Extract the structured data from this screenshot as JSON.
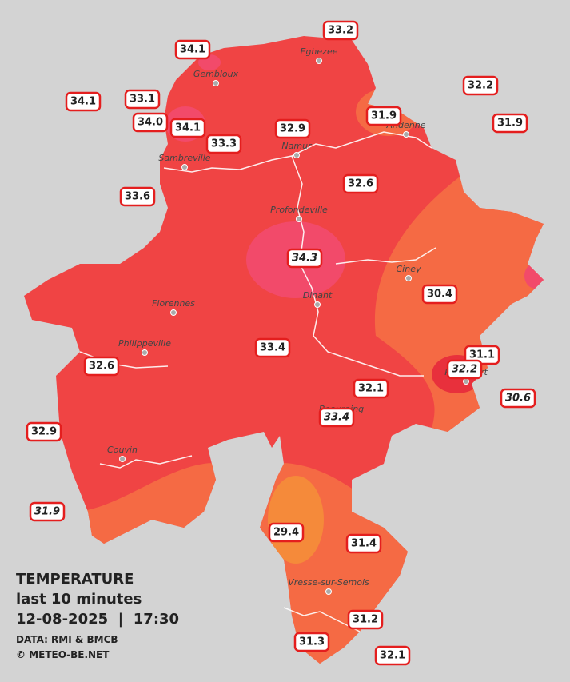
{
  "legend": {
    "title": "TEMPERATURE",
    "subtitle": "last 10 minutes",
    "datetime": "12-08-2025  |  17:30",
    "source": "DATA: RMI & BMCB",
    "credit": "© METEO-BE.NET"
  },
  "cities": [
    "Eghezee",
    "Gembloux",
    "Andenne",
    "Namur",
    "Sambreville",
    "Profondeville",
    "Ciney",
    "Dinant",
    "Florennes",
    "Philippeville",
    "Rochefort",
    "Beauraing",
    "Couvin",
    "Vresse-sur-Semois"
  ],
  "stations": [
    "33.2",
    "34.1",
    "33.1",
    "34.1",
    "34.0",
    "34.1",
    "33.3",
    "32.9",
    "31.9",
    "32.2",
    "31.9",
    "32.6",
    "33.6",
    "34.3",
    "30.4",
    "33.4",
    "31.1",
    "32.2",
    "32.6",
    "32.1",
    "30.6",
    "33.4",
    "32.9",
    "31.9",
    "29.4",
    "31.4",
    "31.2",
    "31.3",
    "32.1"
  ]
}
